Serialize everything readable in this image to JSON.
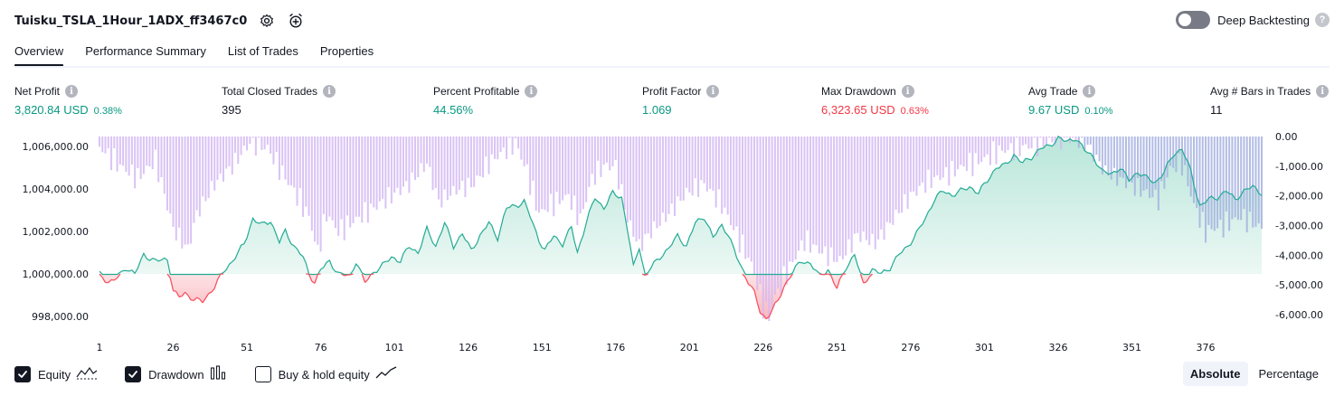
{
  "header": {
    "strategy_title": "Tuisku_TSLA_1Hour_1ADX_ff3467c0",
    "settings_icon": "gear-icon",
    "add_alert_icon": "alarm-add-icon",
    "deep_backtesting_label": "Deep Backtesting",
    "deep_backtesting_enabled": false,
    "help_symbol": "?"
  },
  "tabs": [
    {
      "label": "Overview",
      "active": true
    },
    {
      "label": "Performance Summary",
      "active": false
    },
    {
      "label": "List of Trades",
      "active": false
    },
    {
      "label": "Properties",
      "active": false
    }
  ],
  "metrics": {
    "info_symbol": "i",
    "net_profit": {
      "label": "Net Profit",
      "value": "3,820.84 USD",
      "pct": "0.38%"
    },
    "total_closed_trades": {
      "label": "Total Closed Trades",
      "value": "395"
    },
    "percent_profitable": {
      "label": "Percent Profitable",
      "value": "44.56%"
    },
    "profit_factor": {
      "label": "Profit Factor",
      "value": "1.069"
    },
    "max_drawdown": {
      "label": "Max Drawdown",
      "value": "6,323.65 USD",
      "pct": "0.63%"
    },
    "avg_trade": {
      "label": "Avg Trade",
      "value": "9.67 USD",
      "pct": "0.10%"
    },
    "avg_bars_in_trades": {
      "label": "Avg # Bars in Trades",
      "value": "11"
    }
  },
  "chart_data": {
    "type": "area",
    "x_ticks": [
      "1",
      "26",
      "51",
      "76",
      "101",
      "126",
      "151",
      "176",
      "201",
      "226",
      "251",
      "276",
      "301",
      "326",
      "351",
      "376"
    ],
    "x_range": [
      1,
      395
    ],
    "left_axis": {
      "ticks": [
        "1,006,000.00",
        "1,004,000.00",
        "1,002,000.00",
        "1,000,000.00",
        "998,000.00"
      ],
      "range": [
        997600,
        1006500
      ]
    },
    "right_axis": {
      "ticks": [
        "0.00",
        "-1,000.00",
        "-2,000.00",
        "-3,000.00",
        "-4,000.00",
        "-5,000.00",
        "-6,000.00"
      ],
      "range": [
        -6323.65,
        0
      ]
    },
    "baseline": 1000000,
    "equity": [
      [
        1,
        1000000
      ],
      [
        4,
        999600
      ],
      [
        7,
        999800
      ],
      [
        10,
        1000300
      ],
      [
        13,
        1000000
      ],
      [
        16,
        1000900
      ],
      [
        20,
        1000600
      ],
      [
        24,
        1000700
      ],
      [
        26,
        999200
      ],
      [
        28,
        998900
      ],
      [
        30,
        999100
      ],
      [
        33,
        998800
      ],
      [
        36,
        998700
      ],
      [
        40,
        999400
      ],
      [
        43,
        1000100
      ],
      [
        46,
        1000600
      ],
      [
        50,
        1001400
      ],
      [
        53,
        1002600
      ],
      [
        56,
        1002300
      ],
      [
        59,
        1002500
      ],
      [
        62,
        1001500
      ],
      [
        64,
        1002000
      ],
      [
        67,
        1001300
      ],
      [
        70,
        1000800
      ],
      [
        72,
        1000000
      ],
      [
        74,
        999600
      ],
      [
        76,
        1000200
      ],
      [
        79,
        1000600
      ],
      [
        82,
        1000000
      ],
      [
        86,
        999900
      ],
      [
        88,
        1000600
      ],
      [
        91,
        999600
      ],
      [
        94,
        1000100
      ],
      [
        97,
        1000400
      ],
      [
        100,
        1000800
      ],
      [
        103,
        1000600
      ],
      [
        106,
        1001300
      ],
      [
        109,
        1001000
      ],
      [
        112,
        1002100
      ],
      [
        115,
        1001300
      ],
      [
        118,
        1002400
      ],
      [
        121,
        1001300
      ],
      [
        124,
        1001900
      ],
      [
        127,
        1001100
      ],
      [
        130,
        1001800
      ],
      [
        133,
        1002400
      ],
      [
        136,
        1001700
      ],
      [
        139,
        1003100
      ],
      [
        142,
        1003200
      ],
      [
        145,
        1003400
      ],
      [
        147,
        1002700
      ],
      [
        150,
        1001600
      ],
      [
        152,
        1001100
      ],
      [
        155,
        1001800
      ],
      [
        158,
        1001400
      ],
      [
        161,
        1002200
      ],
      [
        163,
        1001000
      ],
      [
        166,
        1002400
      ],
      [
        169,
        1003600
      ],
      [
        172,
        1003100
      ],
      [
        175,
        1003800
      ],
      [
        178,
        1003600
      ],
      [
        180,
        1002100
      ],
      [
        182,
        1000300
      ],
      [
        184,
        1001300
      ],
      [
        186,
        999900
      ],
      [
        188,
        1000300
      ],
      [
        191,
        1000800
      ],
      [
        194,
        1001200
      ],
      [
        197,
        1001800
      ],
      [
        200,
        1001300
      ],
      [
        203,
        1002400
      ],
      [
        206,
        1002700
      ],
      [
        209,
        1001700
      ],
      [
        212,
        1002300
      ],
      [
        214,
        1001900
      ],
      [
        217,
        1000800
      ],
      [
        220,
        999900
      ],
      [
        223,
        999100
      ],
      [
        225,
        998200
      ],
      [
        227,
        997900
      ],
      [
        229,
        998300
      ],
      [
        231,
        998700
      ],
      [
        233,
        999400
      ],
      [
        236,
        1000100
      ],
      [
        239,
        1000600
      ],
      [
        242,
        1000500
      ],
      [
        245,
        999900
      ],
      [
        248,
        1000200
      ],
      [
        251,
        999300
      ],
      [
        254,
        1000300
      ],
      [
        257,
        1000900
      ],
      [
        260,
        999500
      ],
      [
        263,
        1000200
      ],
      [
        266,
        1000000
      ],
      [
        269,
        1000300
      ],
      [
        272,
        1000900
      ],
      [
        275,
        1001300
      ],
      [
        278,
        1001900
      ],
      [
        281,
        1002600
      ],
      [
        284,
        1003500
      ],
      [
        287,
        1003900
      ],
      [
        290,
        1003700
      ],
      [
        293,
        1003900
      ],
      [
        296,
        1004100
      ],
      [
        299,
        1003800
      ],
      [
        302,
        1004400
      ],
      [
        305,
        1005000
      ],
      [
        308,
        1005100
      ],
      [
        311,
        1005600
      ],
      [
        314,
        1005200
      ],
      [
        317,
        1005500
      ],
      [
        320,
        1005900
      ],
      [
        323,
        1006000
      ],
      [
        326,
        1006400
      ],
      [
        329,
        1006200
      ],
      [
        332,
        1006400
      ],
      [
        335,
        1005800
      ],
      [
        338,
        1005500
      ],
      [
        341,
        1004800
      ],
      [
        344,
        1004700
      ],
      [
        347,
        1005000
      ],
      [
        350,
        1004400
      ],
      [
        353,
        1004800
      ],
      [
        356,
        1004500
      ],
      [
        359,
        1004300
      ],
      [
        362,
        1004800
      ],
      [
        365,
        1005600
      ],
      [
        368,
        1005900
      ],
      [
        371,
        1004800
      ],
      [
        374,
        1003200
      ],
      [
        377,
        1003500
      ],
      [
        380,
        1003600
      ],
      [
        383,
        1003900
      ],
      [
        386,
        1003500
      ],
      [
        389,
        1003900
      ],
      [
        392,
        1004100
      ],
      [
        395,
        1003800
      ]
    ],
    "drawdown": [
      [
        1,
        -360
      ],
      [
        8,
        -1000
      ],
      [
        14,
        -1400
      ],
      [
        20,
        -800
      ],
      [
        26,
        -3100
      ],
      [
        28,
        -3400
      ],
      [
        31,
        -3800
      ],
      [
        34,
        -2600
      ],
      [
        40,
        -1600
      ],
      [
        46,
        -1000
      ],
      [
        52,
        -200
      ],
      [
        58,
        -400
      ],
      [
        64,
        -1400
      ],
      [
        68,
        -2000
      ],
      [
        72,
        -2700
      ],
      [
        75,
        -3900
      ],
      [
        78,
        -2600
      ],
      [
        82,
        -3200
      ],
      [
        88,
        -2800
      ],
      [
        94,
        -2400
      ],
      [
        100,
        -2000
      ],
      [
        106,
        -1600
      ],
      [
        112,
        -900
      ],
      [
        116,
        -2200
      ],
      [
        122,
        -1800
      ],
      [
        128,
        -1600
      ],
      [
        133,
        -900
      ],
      [
        138,
        -500
      ],
      [
        142,
        -200
      ],
      [
        146,
        -1200
      ],
      [
        150,
        -2600
      ],
      [
        154,
        -2300
      ],
      [
        160,
        -2000
      ],
      [
        164,
        -2800
      ],
      [
        168,
        -1400
      ],
      [
        172,
        -1000
      ],
      [
        176,
        -1000
      ],
      [
        180,
        -2800
      ],
      [
        184,
        -3700
      ],
      [
        188,
        -3200
      ],
      [
        194,
        -2600
      ],
      [
        200,
        -1900
      ],
      [
        206,
        -1600
      ],
      [
        212,
        -2300
      ],
      [
        218,
        -3500
      ],
      [
        222,
        -4300
      ],
      [
        226,
        -5700
      ],
      [
        228,
        -6100
      ],
      [
        230,
        -5400
      ],
      [
        234,
        -4600
      ],
      [
        240,
        -3500
      ],
      [
        246,
        -3900
      ],
      [
        252,
        -4200
      ],
      [
        258,
        -3300
      ],
      [
        264,
        -3600
      ],
      [
        270,
        -2800
      ],
      [
        276,
        -2000
      ],
      [
        282,
        -1500
      ],
      [
        288,
        -1300
      ],
      [
        294,
        -1000
      ],
      [
        300,
        -800
      ],
      [
        306,
        -500
      ],
      [
        312,
        -400
      ],
      [
        318,
        -300
      ],
      [
        324,
        -150
      ],
      [
        330,
        -50
      ],
      [
        336,
        -300
      ],
      [
        342,
        -1200
      ],
      [
        348,
        -1500
      ],
      [
        352,
        -1700
      ],
      [
        356,
        -1900
      ],
      [
        360,
        -2100
      ],
      [
        364,
        -1100
      ],
      [
        368,
        -900
      ],
      [
        372,
        -2300
      ],
      [
        376,
        -3200
      ],
      [
        382,
        -3000
      ],
      [
        388,
        -2700
      ],
      [
        395,
        -3100
      ]
    ]
  },
  "legend": {
    "items": [
      {
        "label": "Equity",
        "checked": true,
        "icon": "equity-line-icon"
      },
      {
        "label": "Drawdown",
        "checked": true,
        "icon": "drawdown-bars-icon"
      },
      {
        "label": "Buy & hold equity",
        "checked": false,
        "icon": "buy-hold-line-icon"
      }
    ]
  },
  "scale": {
    "absolute_label": "Absolute",
    "percentage_label": "Percentage",
    "selected": "Absolute"
  },
  "colors": {
    "positive": "#089981",
    "negative": "#f23645",
    "equity_line": "#22ab94",
    "equity_fill": "#cdeee6",
    "drawdown_neg_line": "#f7525f",
    "drawdown_bar": "#d4b8f3",
    "drawdown_bar_overlap": "#a6b1e1"
  }
}
